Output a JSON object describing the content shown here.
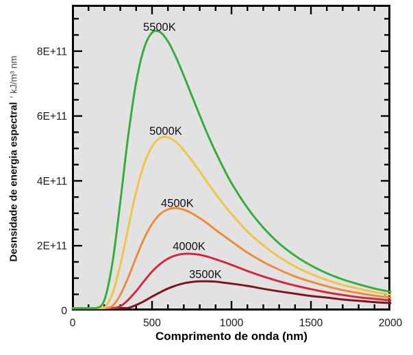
{
  "chart_data": {
    "type": "line",
    "title": "",
    "xlabel": "Comprimento de onda (nm)",
    "ylabel": {
      "main": "Desnsidade de energia espectral",
      "unit": "′ kJ/m³ nm"
    },
    "xlim": [
      0,
      2000
    ],
    "ylim_E11": [
      0,
      9.4
    ],
    "grid": false,
    "legend_position": "inline-labels",
    "x_ticks": [
      {
        "nm": 0,
        "label": "0"
      },
      {
        "nm": 500,
        "label": "500"
      },
      {
        "nm": 1000,
        "label": "1000"
      },
      {
        "nm": 1500,
        "label": "1500"
      },
      {
        "nm": 2000,
        "label": "2000"
      }
    ],
    "x_minor_step_nm": 100,
    "y_ticks": [
      {
        "v_E11": 0,
        "label": "0"
      },
      {
        "v_E11": 2,
        "label": "2E+11"
      },
      {
        "v_E11": 4,
        "label": "4E+11"
      },
      {
        "v_E11": 6,
        "label": "6E+11"
      },
      {
        "v_E11": 8,
        "label": "8E+11"
      }
    ],
    "y_minor_step_E11": 0.5,
    "x_nm": [
      0,
      100,
      150,
      200,
      250,
      300,
      350,
      400,
      450,
      500,
      550,
      600,
      650,
      700,
      750,
      800,
      850,
      900,
      950,
      1000,
      1100,
      1200,
      1300,
      1400,
      1500,
      1600,
      1700,
      1800,
      1900,
      2000
    ],
    "series": [
      {
        "name": "3500K",
        "temperature_K": 3500,
        "color": "#7f141f",
        "label_nm": 836,
        "label_E11": 1.12,
        "values_E11": [
          0,
          0,
          0,
          0,
          0,
          0.02,
          0.08,
          0.17,
          0.29,
          0.43,
          0.56,
          0.68,
          0.77,
          0.84,
          0.88,
          0.9,
          0.9,
          0.89,
          0.86,
          0.83,
          0.76,
          0.67,
          0.59,
          0.52,
          0.45,
          0.4,
          0.34,
          0.3,
          0.26,
          0.23
        ]
      },
      {
        "name": "4000K",
        "temperature_K": 4000,
        "color": "#d1293a",
        "label_nm": 733,
        "label_E11": 1.98,
        "values_E11": [
          0,
          0,
          0,
          0,
          0.03,
          0.13,
          0.33,
          0.6,
          0.91,
          1.2,
          1.43,
          1.6,
          1.7,
          1.75,
          1.75,
          1.72,
          1.66,
          1.58,
          1.5,
          1.41,
          1.22,
          1.05,
          0.9,
          0.77,
          0.66,
          0.56,
          0.48,
          0.41,
          0.36,
          0.31
        ]
      },
      {
        "name": "4500K",
        "temperature_K": 4500,
        "color": "#ec8c3a",
        "label_nm": 659,
        "label_E11": 3.31,
        "values_E11": [
          0,
          0,
          0,
          0.02,
          0.14,
          0.48,
          1.02,
          1.64,
          2.22,
          2.67,
          2.97,
          3.12,
          3.16,
          3.11,
          3.0,
          2.85,
          2.68,
          2.49,
          2.31,
          2.13,
          1.79,
          1.5,
          1.26,
          1.05,
          0.89,
          0.75,
          0.63,
          0.54,
          0.46,
          0.4
        ]
      },
      {
        "name": "5000K",
        "temperature_K": 5000,
        "color": "#efc545",
        "label_nm": 586,
        "label_E11": 5.54,
        "values_E11": [
          0,
          0,
          0,
          0.09,
          0.51,
          1.4,
          2.55,
          3.66,
          4.52,
          5.06,
          5.32,
          5.34,
          5.2,
          4.94,
          4.63,
          4.29,
          3.94,
          3.6,
          3.28,
          2.98,
          2.44,
          2.01,
          1.65,
          1.36,
          1.13,
          0.94,
          0.79,
          0.67,
          0.57,
          0.49
        ]
      },
      {
        "name": "5500K",
        "temperature_K": 5500,
        "color": "#34ad3c",
        "label_nm": 547,
        "label_E11": 8.74,
        "values_E11": [
          0,
          0,
          0.02,
          0.32,
          1.45,
          3.34,
          5.39,
          7.04,
          8.09,
          8.57,
          8.59,
          8.3,
          7.82,
          7.24,
          6.63,
          6.02,
          5.43,
          4.89,
          4.39,
          3.93,
          3.17,
          2.56,
          2.07,
          1.69,
          1.39,
          1.15,
          0.96,
          0.81,
          0.68,
          0.58
        ]
      }
    ]
  },
  "colors": {
    "page_bg": "#ffffff",
    "plot_bg": "#e2e2e2",
    "axis": "#000000",
    "tick_label": "#1b1b1b",
    "curve_label": "#111111"
  }
}
